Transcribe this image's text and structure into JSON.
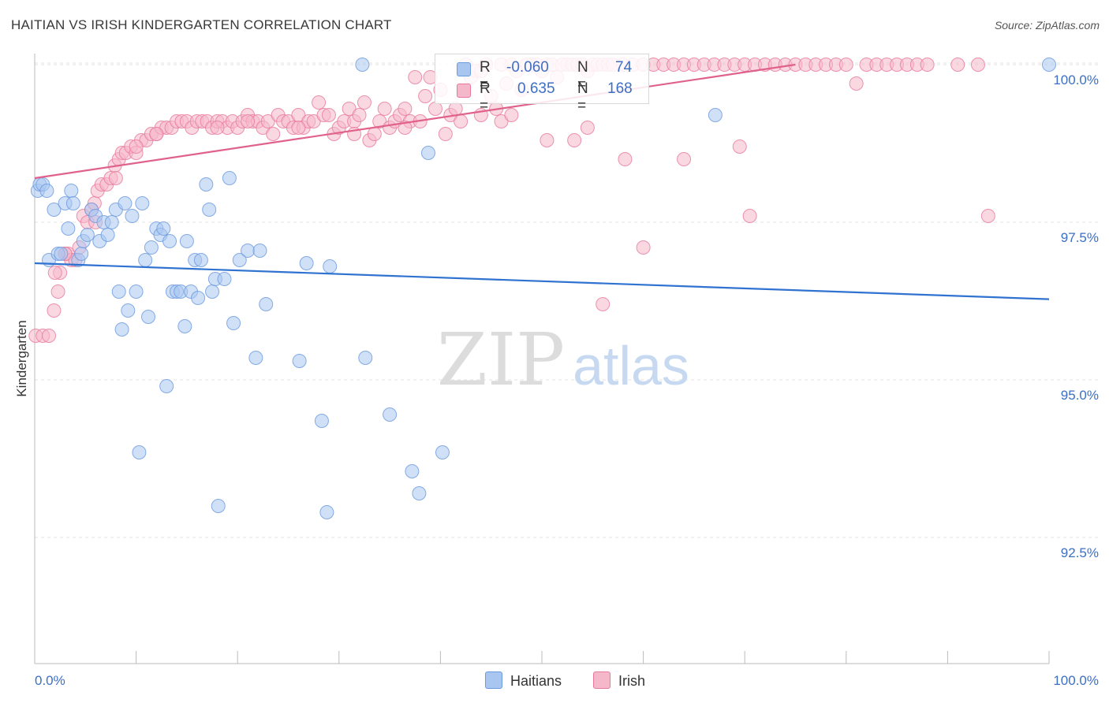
{
  "title": "HAITIAN VS IRISH KINDERGARTEN CORRELATION CHART",
  "source": "Source: ZipAtlas.com",
  "watermark": {
    "zip": "ZIP",
    "atlas": "atlas"
  },
  "legend_stats": [
    {
      "series": "Haitians",
      "r_label": "R =",
      "r_value": "-0.060",
      "n_label": "N =",
      "n_value": "74",
      "color": "#a9c6f0"
    },
    {
      "series": "Irish",
      "r_label": "R =",
      "r_value": "0.635",
      "n_label": "N =",
      "n_value": "168",
      "color": "#f5b8cb"
    }
  ],
  "chart_data": {
    "type": "scatter",
    "xlabel": "",
    "ylabel": "Kindergarten",
    "xlim": [
      0,
      100
    ],
    "ylim": [
      90.5,
      100.3
    ],
    "x_tick_labels": [
      "0.0%",
      "100.0%"
    ],
    "y_ticks": [
      92.5,
      95.0,
      97.5,
      100.0
    ],
    "y_tick_labels": [
      "92.5%",
      "95.0%",
      "97.5%",
      "100.0%"
    ],
    "grid": true,
    "legend_position": "bottom",
    "series": [
      {
        "name": "Haitians",
        "color": "#6a9ae0",
        "fill": "#a9c6f0",
        "trend": [
          [
            0,
            96.85
          ],
          [
            100,
            96.28
          ]
        ],
        "points": [
          [
            0.3,
            98.0
          ],
          [
            0.5,
            98.1
          ],
          [
            0.8,
            98.1
          ],
          [
            1.2,
            98.0
          ],
          [
            1.4,
            96.9
          ],
          [
            1.9,
            97.7
          ],
          [
            2.3,
            97.0
          ],
          [
            2.6,
            97.0
          ],
          [
            3.0,
            97.8
          ],
          [
            3.3,
            97.4
          ],
          [
            3.6,
            98.0
          ],
          [
            3.8,
            97.8
          ],
          [
            4.3,
            96.9
          ],
          [
            4.6,
            97.0
          ],
          [
            4.8,
            97.2
          ],
          [
            5.2,
            97.3
          ],
          [
            5.6,
            97.7
          ],
          [
            6.0,
            97.6
          ],
          [
            6.4,
            97.2
          ],
          [
            6.8,
            97.5
          ],
          [
            7.2,
            97.3
          ],
          [
            7.6,
            97.5
          ],
          [
            8.0,
            97.7
          ],
          [
            8.3,
            96.4
          ],
          [
            8.6,
            95.8
          ],
          [
            8.9,
            97.8
          ],
          [
            9.2,
            96.1
          ],
          [
            9.6,
            97.6
          ],
          [
            10.0,
            96.4
          ],
          [
            10.3,
            93.85
          ],
          [
            10.6,
            97.8
          ],
          [
            10.9,
            96.9
          ],
          [
            11.2,
            96.0
          ],
          [
            11.5,
            97.1
          ],
          [
            12.0,
            97.4
          ],
          [
            12.4,
            97.3
          ],
          [
            12.7,
            97.4
          ],
          [
            13.0,
            94.9
          ],
          [
            13.3,
            97.2
          ],
          [
            13.6,
            96.4
          ],
          [
            14.0,
            96.4
          ],
          [
            14.4,
            96.4
          ],
          [
            14.8,
            95.85
          ],
          [
            15.0,
            97.2
          ],
          [
            15.4,
            96.4
          ],
          [
            15.8,
            96.9
          ],
          [
            16.1,
            96.3
          ],
          [
            16.4,
            96.9
          ],
          [
            16.9,
            98.1
          ],
          [
            17.2,
            97.7
          ],
          [
            17.5,
            96.4
          ],
          [
            17.8,
            96.6
          ],
          [
            18.1,
            93.0
          ],
          [
            18.7,
            96.6
          ],
          [
            19.2,
            98.2
          ],
          [
            19.6,
            95.9
          ],
          [
            20.2,
            96.9
          ],
          [
            21.0,
            97.05
          ],
          [
            21.8,
            95.35
          ],
          [
            22.2,
            97.05
          ],
          [
            22.8,
            96.2
          ],
          [
            26.1,
            95.3
          ],
          [
            26.8,
            96.85
          ],
          [
            28.3,
            94.35
          ],
          [
            28.8,
            92.9
          ],
          [
            29.1,
            96.8
          ],
          [
            32.3,
            100.0
          ],
          [
            32.6,
            95.35
          ],
          [
            35.0,
            94.45
          ],
          [
            37.2,
            93.55
          ],
          [
            37.9,
            93.2
          ],
          [
            38.8,
            98.6
          ],
          [
            40.2,
            93.85
          ],
          [
            67.1,
            99.2
          ],
          [
            100.0,
            100.0
          ]
        ]
      },
      {
        "name": "Irish",
        "color": "#e8799c",
        "fill": "#f5b8cb",
        "trend": [
          [
            0,
            98.2
          ],
          [
            75,
            100.0
          ]
        ],
        "points": [
          [
            0.1,
            95.7
          ],
          [
            0.8,
            95.7
          ],
          [
            1.4,
            95.7
          ],
          [
            1.9,
            96.1
          ],
          [
            2.3,
            96.4
          ],
          [
            2.5,
            96.7
          ],
          [
            3.0,
            97.0
          ],
          [
            3.3,
            97.0
          ],
          [
            3.6,
            96.9
          ],
          [
            4.0,
            96.9
          ],
          [
            4.4,
            97.1
          ],
          [
            4.8,
            97.6
          ],
          [
            5.2,
            97.5
          ],
          [
            5.6,
            97.7
          ],
          [
            5.9,
            97.8
          ],
          [
            6.2,
            98.0
          ],
          [
            6.6,
            98.1
          ],
          [
            7.1,
            98.1
          ],
          [
            7.5,
            98.2
          ],
          [
            7.9,
            98.4
          ],
          [
            8.3,
            98.5
          ],
          [
            8.6,
            98.6
          ],
          [
            9.0,
            98.6
          ],
          [
            9.5,
            98.7
          ],
          [
            10.0,
            98.6
          ],
          [
            10.5,
            98.8
          ],
          [
            11.0,
            98.8
          ],
          [
            11.5,
            98.9
          ],
          [
            12.0,
            98.9
          ],
          [
            12.5,
            99.0
          ],
          [
            13.0,
            99.0
          ],
          [
            13.5,
            99.0
          ],
          [
            14.0,
            99.1
          ],
          [
            14.5,
            99.1
          ],
          [
            15.0,
            99.1
          ],
          [
            15.5,
            99.0
          ],
          [
            16.0,
            99.1
          ],
          [
            16.5,
            99.1
          ],
          [
            17.0,
            99.1
          ],
          [
            17.5,
            99.0
          ],
          [
            18.0,
            99.1
          ],
          [
            18.5,
            99.1
          ],
          [
            19.0,
            99.0
          ],
          [
            19.5,
            99.1
          ],
          [
            20.0,
            99.0
          ],
          [
            20.5,
            99.1
          ],
          [
            21.0,
            99.2
          ],
          [
            21.5,
            99.1
          ],
          [
            22.0,
            99.1
          ],
          [
            22.5,
            99.0
          ],
          [
            23.0,
            99.1
          ],
          [
            23.5,
            98.9
          ],
          [
            24.0,
            99.2
          ],
          [
            24.5,
            99.1
          ],
          [
            25.0,
            99.1
          ],
          [
            25.5,
            99.0
          ],
          [
            26.0,
            99.2
          ],
          [
            26.5,
            99.0
          ],
          [
            27.0,
            99.1
          ],
          [
            27.5,
            99.1
          ],
          [
            28.0,
            99.4
          ],
          [
            28.5,
            99.2
          ],
          [
            29.0,
            99.2
          ],
          [
            29.5,
            98.9
          ],
          [
            30.0,
            99.0
          ],
          [
            30.5,
            99.1
          ],
          [
            31.0,
            99.3
          ],
          [
            31.5,
            99.1
          ],
          [
            32.0,
            99.2
          ],
          [
            32.5,
            99.4
          ],
          [
            33.0,
            98.8
          ],
          [
            33.5,
            98.9
          ],
          [
            34.0,
            99.1
          ],
          [
            34.5,
            99.3
          ],
          [
            35.0,
            99.0
          ],
          [
            35.5,
            99.1
          ],
          [
            36.0,
            99.2
          ],
          [
            36.5,
            99.3
          ],
          [
            37.0,
            99.1
          ],
          [
            37.5,
            99.8
          ],
          [
            38.0,
            99.1
          ],
          [
            38.5,
            99.5
          ],
          [
            39.0,
            99.8
          ],
          [
            39.5,
            99.3
          ],
          [
            40.0,
            99.6
          ],
          [
            40.5,
            98.9
          ],
          [
            41.0,
            99.2
          ],
          [
            41.5,
            99.3
          ],
          [
            42.0,
            99.1
          ],
          [
            42.5,
            100.0
          ],
          [
            43.0,
            99.8
          ],
          [
            43.5,
            99.9
          ],
          [
            44.0,
            99.9
          ],
          [
            44.5,
            100.0
          ],
          [
            45.0,
            99.5
          ],
          [
            45.5,
            99.3
          ],
          [
            46.0,
            100.0
          ],
          [
            46.5,
            99.7
          ],
          [
            47.0,
            100.0
          ],
          [
            47.5,
            99.9
          ],
          [
            48.0,
            99.6
          ],
          [
            48.5,
            100.0
          ],
          [
            49.0,
            100.0
          ],
          [
            49.5,
            100.0
          ],
          [
            50.0,
            99.9
          ],
          [
            50.5,
            100.0
          ],
          [
            51.0,
            100.0
          ],
          [
            51.5,
            99.8
          ],
          [
            52.0,
            100.0
          ],
          [
            52.5,
            100.0
          ],
          [
            53.0,
            100.0
          ],
          [
            53.5,
            100.0
          ],
          [
            54.0,
            100.0
          ],
          [
            54.5,
            99.9
          ],
          [
            55.0,
            100.0
          ],
          [
            55.5,
            100.0
          ],
          [
            56.0,
            100.0
          ],
          [
            56.5,
            100.0
          ],
          [
            57.0,
            100.0
          ],
          [
            58.0,
            100.0
          ],
          [
            59.0,
            100.0
          ],
          [
            60.0,
            100.0
          ],
          [
            61.0,
            100.0
          ],
          [
            62.0,
            100.0
          ],
          [
            63.0,
            100.0
          ],
          [
            64.0,
            100.0
          ],
          [
            65.0,
            100.0
          ],
          [
            66.0,
            100.0
          ],
          [
            67.0,
            100.0
          ],
          [
            68.0,
            100.0
          ],
          [
            69.0,
            100.0
          ],
          [
            70.0,
            100.0
          ],
          [
            71.0,
            100.0
          ],
          [
            72.0,
            100.0
          ],
          [
            73.0,
            100.0
          ],
          [
            74.0,
            100.0
          ],
          [
            75.0,
            100.0
          ],
          [
            76.0,
            100.0
          ],
          [
            77.0,
            100.0
          ],
          [
            78.0,
            100.0
          ],
          [
            79.0,
            100.0
          ],
          [
            80.0,
            100.0
          ],
          [
            81.0,
            99.7
          ],
          [
            82.0,
            100.0
          ],
          [
            83.0,
            100.0
          ],
          [
            84.0,
            100.0
          ],
          [
            85.0,
            100.0
          ],
          [
            86.0,
            100.0
          ],
          [
            87.0,
            100.0
          ],
          [
            88.0,
            100.0
          ],
          [
            91.0,
            100.0
          ],
          [
            93.0,
            100.0
          ],
          [
            46.0,
            99.1
          ],
          [
            47.0,
            99.2
          ],
          [
            50.5,
            98.8
          ],
          [
            53.2,
            98.8
          ],
          [
            54.5,
            99.0
          ],
          [
            58.2,
            98.5
          ],
          [
            60.0,
            97.1
          ],
          [
            69.5,
            98.7
          ],
          [
            70.5,
            97.6
          ],
          [
            56.0,
            96.2
          ],
          [
            64.0,
            98.5
          ],
          [
            94.0,
            97.6
          ],
          [
            36.5,
            99.0
          ],
          [
            31.5,
            98.9
          ],
          [
            44.0,
            99.2
          ],
          [
            21.0,
            99.1
          ],
          [
            26.0,
            99.0
          ],
          [
            18.0,
            99.0
          ],
          [
            12.0,
            98.9
          ],
          [
            6.0,
            97.5
          ],
          [
            3.0,
            97.0
          ],
          [
            2.0,
            96.7
          ],
          [
            8.0,
            98.2
          ],
          [
            10.0,
            98.7
          ]
        ]
      }
    ]
  }
}
